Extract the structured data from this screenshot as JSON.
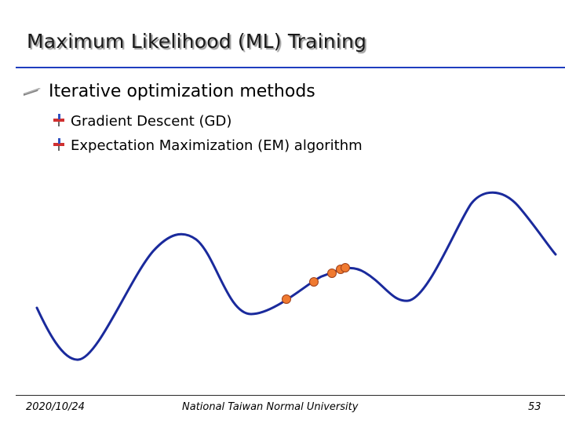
{
  "slide": {
    "title": "Maximum Likelihood (ML) Training",
    "bullets": [
      {
        "icon": "arrow-bullet-icon",
        "text": "Iterative optimization methods",
        "subbullets": [
          {
            "icon": "sub-bullet-icon",
            "text": "Gradient Descent (GD)"
          },
          {
            "icon": "sub-bullet-icon",
            "text": "Expectation Maximization (EM) algorithm"
          }
        ]
      }
    ],
    "illustration": {
      "description": "wavy-likelihood-curve-with-iterate-points",
      "curve_color": "#1a2a9c",
      "point_color": "#f07a30",
      "point_stroke": "#a0401a",
      "iterate_count": 5
    },
    "footer": {
      "date": "2020/10/24",
      "institution": "National Taiwan Normal University",
      "page": "53"
    },
    "colors": {
      "title_rule": "#1f3dbf",
      "footer_rule": "#2a2a2a"
    }
  }
}
